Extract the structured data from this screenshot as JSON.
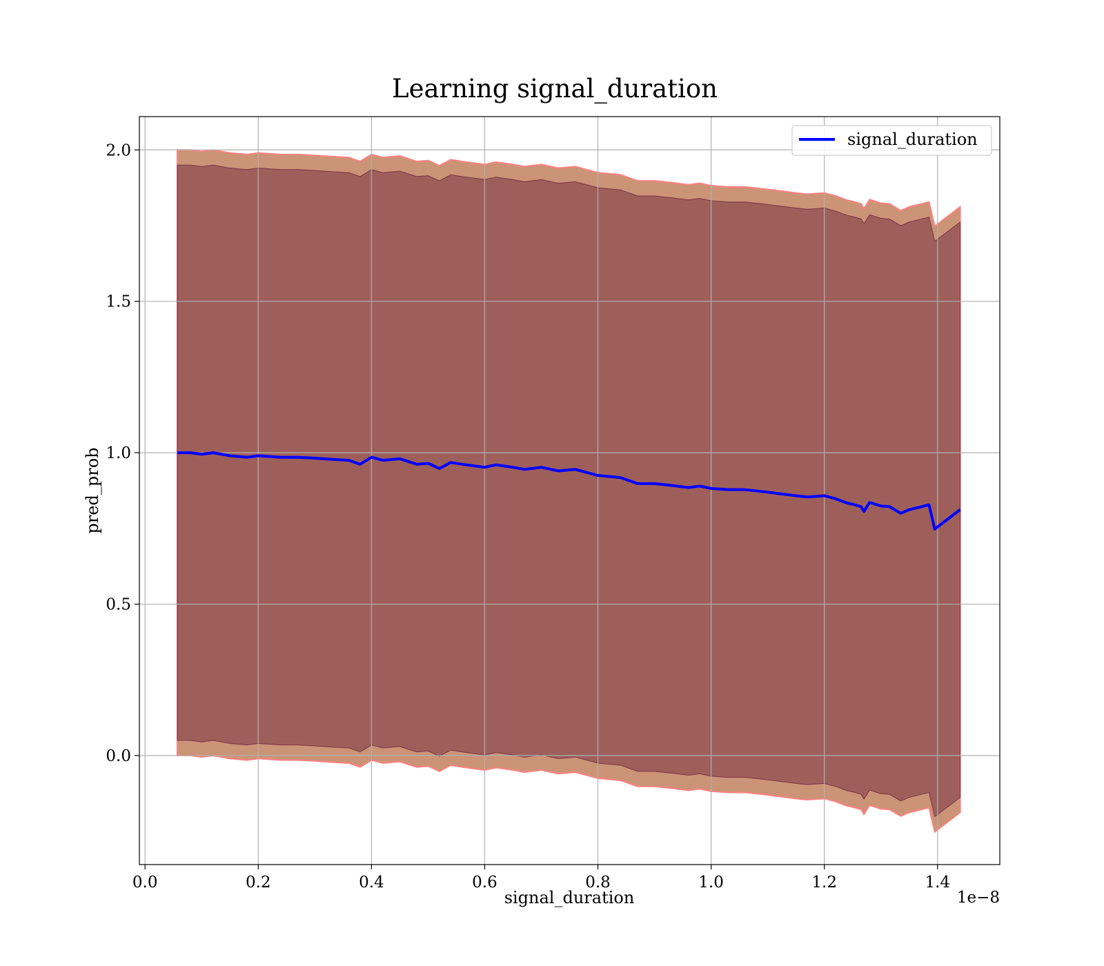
{
  "chart_data": {
    "type": "line",
    "title": "Learning signal_duration",
    "xlabel": "signal_duration",
    "ylabel": "pred_prob",
    "x_offset_label": "1e−8",
    "xlim": [
      -0.01,
      1.51
    ],
    "ylim": [
      -0.36,
      2.11
    ],
    "x_ticks": [
      0.0,
      0.2,
      0.4,
      0.6,
      0.8,
      1.0,
      1.2,
      1.4
    ],
    "x_tick_labels": [
      "0.0",
      "0.2",
      "0.4",
      "0.6",
      "0.8",
      "1.0",
      "1.2",
      "1.4"
    ],
    "y_ticks": [
      0.0,
      0.5,
      1.0,
      1.5,
      2.0
    ],
    "y_tick_labels": [
      "0.0",
      "0.5",
      "1.0",
      "1.5",
      "2.0"
    ],
    "grid": true,
    "legend_position": "top-right",
    "colors": {
      "line": "#0000ff",
      "inner_band": "#7a3346",
      "outer_band": "#b5663c",
      "outer_edge": "#ff8080"
    },
    "series": [
      {
        "name": "signal_duration",
        "x": [
          0.057,
          0.08,
          0.1,
          0.12,
          0.15,
          0.18,
          0.2,
          0.24,
          0.27,
          0.3,
          0.33,
          0.36,
          0.38,
          0.4,
          0.42,
          0.45,
          0.48,
          0.5,
          0.52,
          0.54,
          0.56,
          0.6,
          0.62,
          0.65,
          0.67,
          0.7,
          0.73,
          0.76,
          0.8,
          0.84,
          0.87,
          0.9,
          0.93,
          0.96,
          0.98,
          1.0,
          1.03,
          1.06,
          1.09,
          1.12,
          1.15,
          1.17,
          1.2,
          1.22,
          1.24,
          1.25,
          1.265,
          1.27,
          1.28,
          1.3,
          1.315,
          1.335,
          1.35,
          1.385,
          1.395,
          1.44
        ],
        "y": [
          1.0,
          1.0,
          0.995,
          1.0,
          0.99,
          0.985,
          0.99,
          0.985,
          0.985,
          0.982,
          0.978,
          0.975,
          0.962,
          0.985,
          0.975,
          0.98,
          0.962,
          0.965,
          0.948,
          0.968,
          0.962,
          0.952,
          0.96,
          0.952,
          0.945,
          0.952,
          0.94,
          0.945,
          0.925,
          0.918,
          0.898,
          0.898,
          0.892,
          0.885,
          0.89,
          0.882,
          0.878,
          0.878,
          0.872,
          0.865,
          0.858,
          0.854,
          0.858,
          0.848,
          0.834,
          0.83,
          0.822,
          0.806,
          0.836,
          0.824,
          0.822,
          0.8,
          0.812,
          0.828,
          0.748,
          0.812
        ]
      }
    ],
    "band_inner_half_width": 0.95,
    "band_outer_half_width": 1.0
  }
}
